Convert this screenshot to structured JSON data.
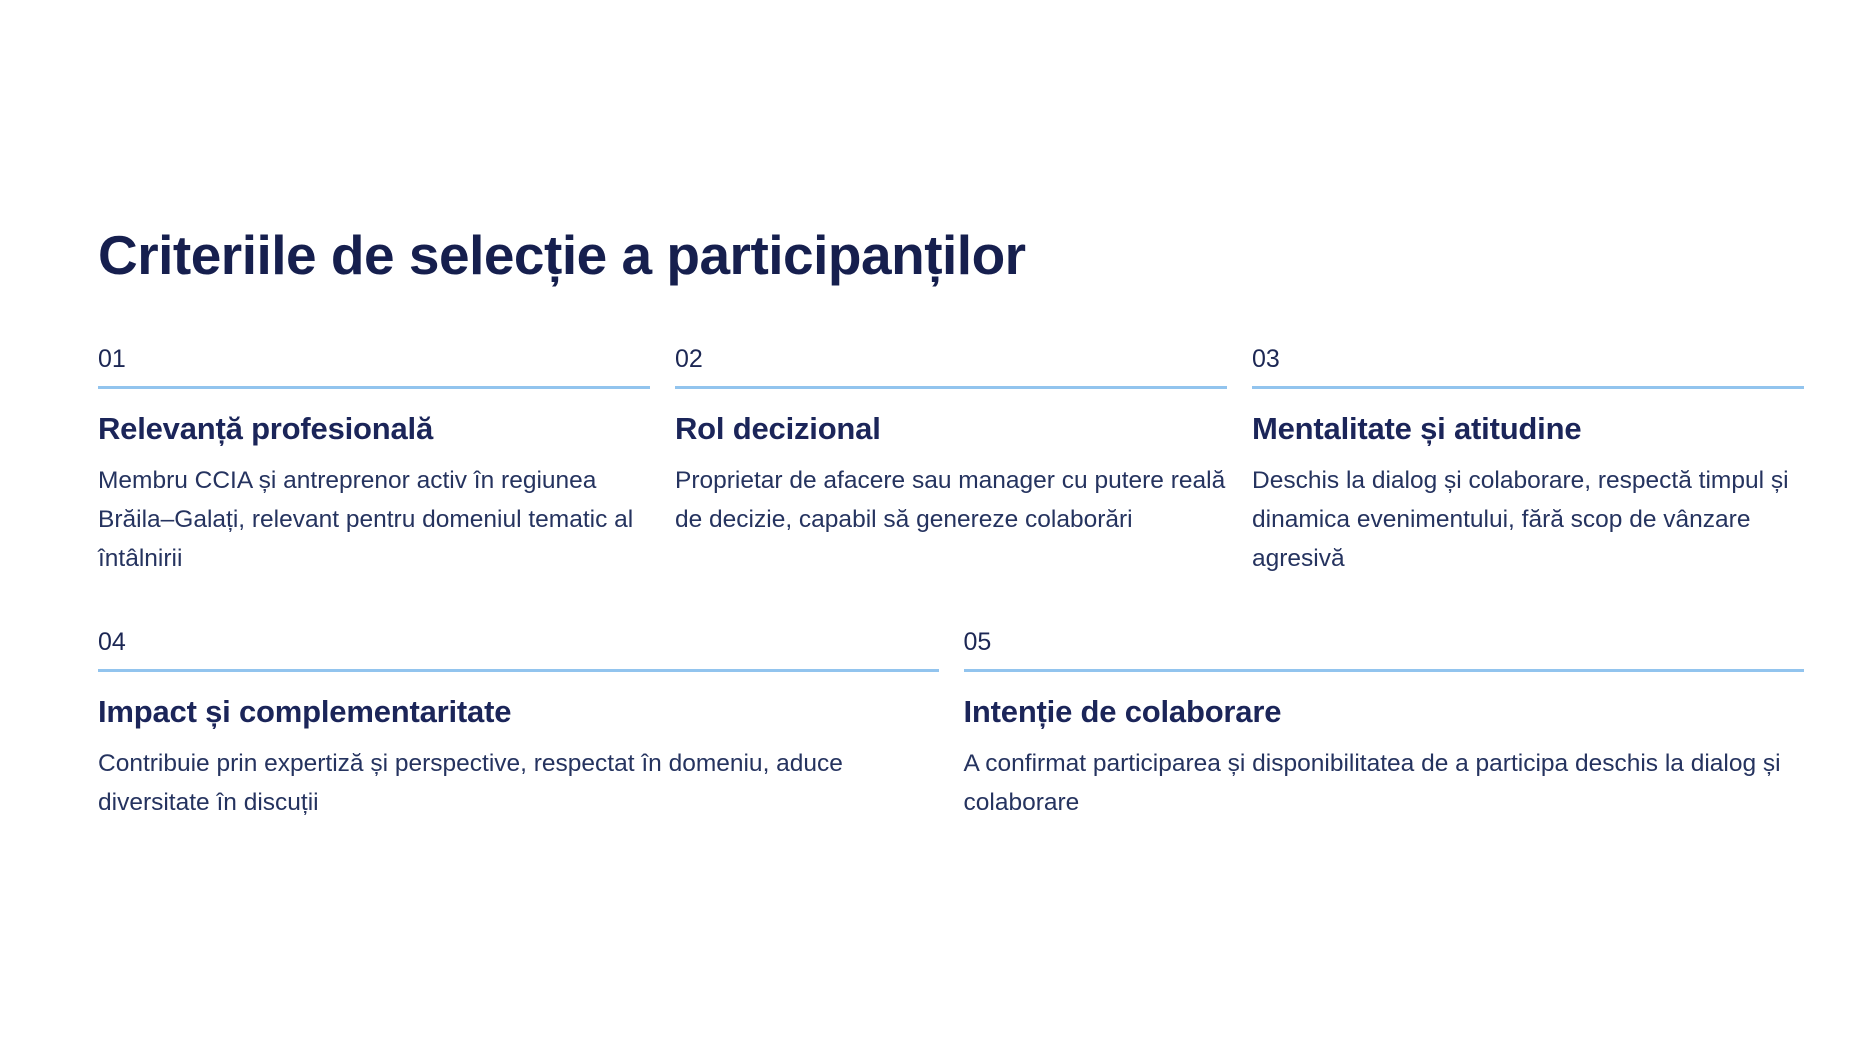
{
  "slide": {
    "title": "Criteriile de selecție a participanților",
    "colors": {
      "background": "#ffffff",
      "title_navy": "#161f4e",
      "heading_navy": "#1b2559",
      "body_navy": "#25335f",
      "accent_line_blue": "#92c4ee"
    },
    "criteria": [
      {
        "number": "01",
        "heading": "Relevanță profesională",
        "description": "Membru CCIA și antreprenor activ în regiunea Brăila–Galați, relevant pentru domeniul tematic al întâlnirii"
      },
      {
        "number": "02",
        "heading": "Rol decizional",
        "description": "Proprietar de afacere sau manager cu putere reală de decizie, capabil să genereze colaborări"
      },
      {
        "number": "03",
        "heading": "Mentalitate și atitudine",
        "description": "Deschis la dialog și colaborare, respectă timpul și dinamica evenimentului, fără scop de vânzare agresivă"
      },
      {
        "number": "04",
        "heading": "Impact și complementaritate",
        "description": "Contribuie prin expertiză și perspective, respectat în domeniu, aduce diversitate în discuții"
      },
      {
        "number": "05",
        "heading": "Intenție de colaborare",
        "description": "A confirmat participarea și disponibilitatea de a participa deschis la dialog și colaborare"
      }
    ]
  }
}
